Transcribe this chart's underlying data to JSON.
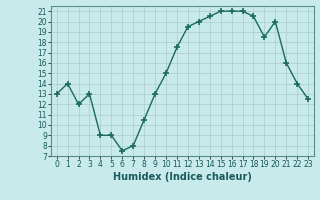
{
  "x": [
    0,
    1,
    2,
    3,
    4,
    5,
    6,
    7,
    8,
    9,
    10,
    11,
    12,
    13,
    14,
    15,
    16,
    17,
    18,
    19,
    20,
    21,
    22,
    23
  ],
  "y": [
    13,
    14,
    12,
    13,
    9,
    9,
    7.5,
    8,
    10.5,
    13,
    15,
    17.5,
    19.5,
    20,
    20.5,
    21,
    21,
    21,
    20.5,
    18.5,
    20,
    16,
    14,
    12.5
  ],
  "line_color": "#1a6b5a",
  "marker": "+",
  "marker_size": 4,
  "bg_color": "#c8eaea",
  "grid_color": "#b0d0d0",
  "xlabel": "Humidex (Indice chaleur)",
  "ylim": [
    7,
    21.5
  ],
  "xlim": [
    -0.5,
    23.5
  ],
  "yticks": [
    7,
    8,
    9,
    10,
    11,
    12,
    13,
    14,
    15,
    16,
    17,
    18,
    19,
    20,
    21
  ],
  "xticks": [
    0,
    1,
    2,
    3,
    4,
    5,
    6,
    7,
    8,
    9,
    10,
    11,
    12,
    13,
    14,
    15,
    16,
    17,
    18,
    19,
    20,
    21,
    22,
    23
  ],
  "tick_color": "#1a5a5a",
  "axis_label_fontsize": 7,
  "tick_fontsize": 5.5,
  "line_width": 1.0
}
